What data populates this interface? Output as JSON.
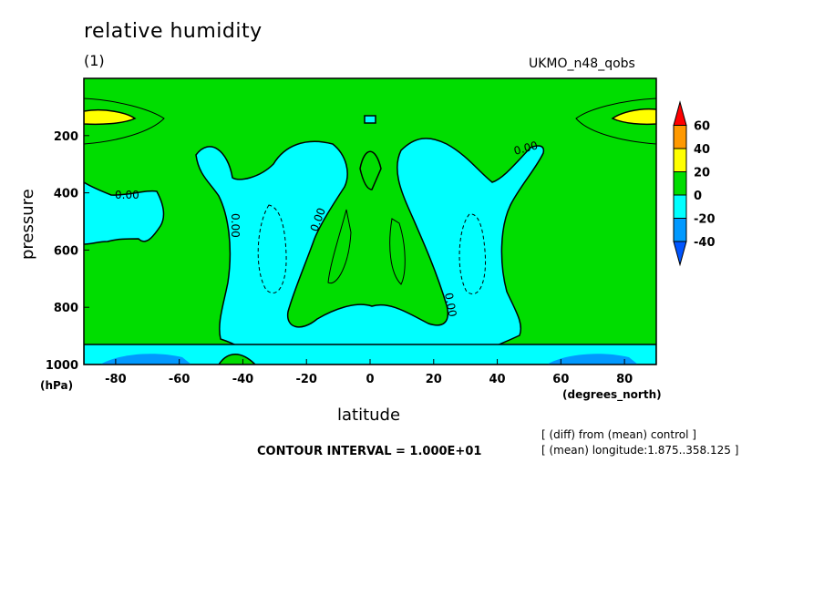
{
  "chart_data": {
    "type": "contour",
    "title": "relative humidity",
    "subtitle": "(1)",
    "run_label": "UKMO_n48_qobs",
    "xlabel": "latitude",
    "xunits": "(degrees_north)",
    "ylabel": "pressure",
    "yunits": "(hPa)",
    "xlim": [
      -90,
      90
    ],
    "ylim": [
      1000,
      0
    ],
    "x_ticks": [
      -80,
      -60,
      -40,
      -20,
      0,
      20,
      40,
      60,
      80
    ],
    "y_ticks": [
      200,
      400,
      600,
      800,
      1000
    ],
    "contour_interval_text": "CONTOUR INTERVAL = 1.000E+01",
    "contour_labels": [
      "0.00",
      "0.00",
      "0.00",
      "0.00",
      "0.00",
      "0.00"
    ],
    "colorbar": {
      "levels": [
        60,
        40,
        20,
        0,
        -20,
        -40
      ],
      "colors": [
        "#ff0000",
        "#ff9900",
        "#ffff00",
        "#00dd00",
        "#00ffff",
        "#0099ff",
        "#0055ff"
      ]
    },
    "notes": [
      "[ (diff) from (mean) control ]",
      "[ (mean) longitude:1.875..358.125 ]"
    ]
  }
}
